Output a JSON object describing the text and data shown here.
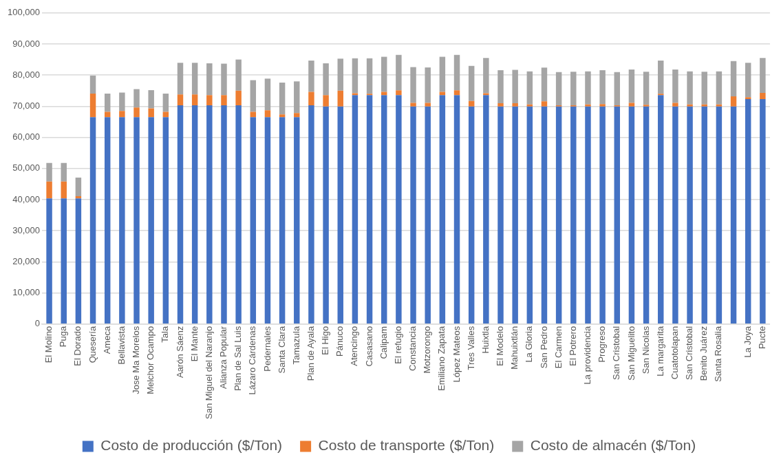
{
  "chart_data": {
    "type": "bar",
    "stacked": true,
    "categories": [
      "El Molino",
      "Puga",
      "El Dorado",
      "Quesería",
      "Ameca",
      "Bellavista",
      "Jose Ma Morelos",
      "Melchor Ocampo",
      "Tala",
      "Aarón Sáenz",
      "El Mante",
      "San Miguel del Naranjo",
      "Alianza Popular",
      "Plan de Sal Luis",
      "Lázaro Cárdenas",
      "Pedernales",
      "Santa Clara",
      "Tamazula",
      "Plan de Ayala",
      "El Higo",
      "Pánuco",
      "Atencingo",
      "Casasano",
      "Calipam",
      "El refugio",
      "Constancia",
      "Motzorongo",
      "Emiliano Zapata",
      "López Mateos",
      "Tres Valles",
      "Huixtla",
      "El Modelo",
      "Mahuixtlán",
      "La Gloria",
      "San Pedro",
      "El Carmen",
      "El Potrero",
      "La providencia",
      "Progreso",
      "San Cristobal",
      "San Miguelito",
      "San Nicolas",
      "La margarita",
      "Cuatotolapan",
      "San Cristobal",
      "Benito Juárez",
      "Santa Rosalia",
      null,
      "La Joya",
      "Pucte"
    ],
    "series": [
      {
        "name": "Costo de producción ($/Ton)",
        "color": "#4472c4",
        "values": [
          40400,
          40400,
          40400,
          66500,
          66500,
          66500,
          66500,
          66500,
          66500,
          70300,
          70300,
          70300,
          70300,
          70300,
          66500,
          66500,
          66500,
          66500,
          70300,
          69900,
          69900,
          73600,
          73600,
          73600,
          73600,
          69900,
          69900,
          73600,
          73600,
          69900,
          73600,
          69900,
          69900,
          69900,
          69900,
          69900,
          69900,
          69900,
          69900,
          69900,
          69900,
          69900,
          73600,
          69900,
          69900,
          69900,
          69900,
          69900,
          72300,
          72300
        ]
      },
      {
        "name": "Costo de transporte ($/Ton)",
        "color": "#ed7d31",
        "values": [
          5400,
          5400,
          700,
          7600,
          1700,
          2000,
          3100,
          2800,
          1700,
          3500,
          3500,
          3300,
          3300,
          4700,
          1700,
          2200,
          900,
          1300,
          4300,
          3700,
          5100,
          600,
          400,
          1000,
          1500,
          1200,
          1200,
          1000,
          1500,
          1800,
          600,
          1100,
          1100,
          700,
          1700,
          400,
          400,
          700,
          800,
          400,
          1200,
          600,
          400,
          1200,
          700,
          700,
          700,
          3300,
          600,
          2000
        ]
      },
      {
        "name": "Costo de almacén ($/Ton)",
        "color": "#a5a5a5",
        "values": [
          6000,
          6000,
          6000,
          5800,
          5900,
          5900,
          5900,
          5900,
          5900,
          10200,
          10200,
          10200,
          10100,
          10000,
          10200,
          10200,
          10200,
          10200,
          10100,
          10200,
          10300,
          11200,
          11400,
          11300,
          11400,
          11500,
          11400,
          11300,
          11400,
          11300,
          11300,
          10600,
          10700,
          10600,
          10800,
          10700,
          10800,
          10600,
          10900,
          10700,
          10700,
          10600,
          10700,
          10700,
          10600,
          10500,
          10600,
          11300,
          11100,
          11200
        ]
      }
    ],
    "ylim": [
      0,
      100000
    ],
    "yticks": [
      0,
      {
        "value": 10000,
        "label": "10,000"
      },
      {
        "value": 20000,
        "label": "20,000"
      },
      {
        "value": 30000,
        "label": "30,000"
      },
      {
        "value": 40000,
        "label": "40,000"
      },
      {
        "value": 50000,
        "label": "50,000"
      },
      {
        "value": 60000,
        "label": "60,000"
      },
      {
        "value": 70000,
        "label": "70,000"
      },
      {
        "value": 80000,
        "label": "80,000"
      },
      {
        "value": 90000,
        "label": "90,000"
      },
      {
        "value": 100000,
        "label": "100,000"
      }
    ],
    "grid": "y",
    "legend": "bottom"
  }
}
